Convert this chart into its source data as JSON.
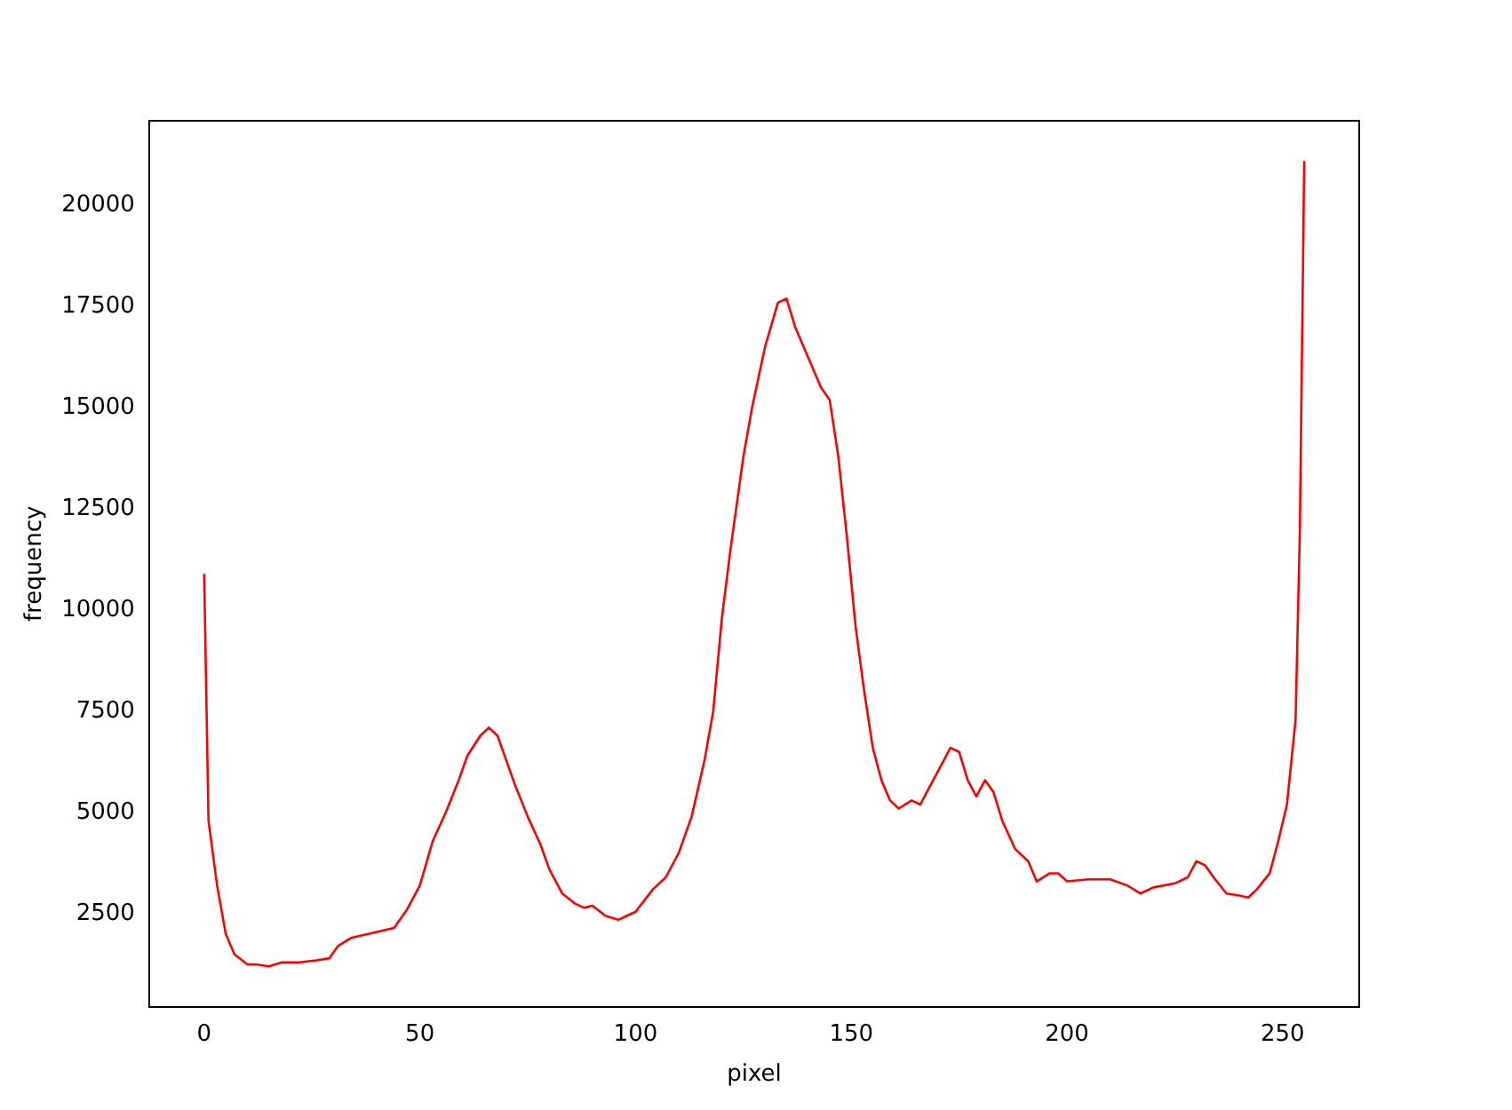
{
  "chart_data": {
    "type": "line",
    "xlabel": "pixel",
    "ylabel": "frequency",
    "x": [
      0,
      1,
      3,
      5,
      7,
      10,
      12,
      15,
      18,
      22,
      26,
      29,
      31,
      34,
      38,
      40,
      44,
      47,
      50,
      53,
      56,
      59,
      61,
      64,
      66,
      68,
      70,
      72,
      75,
      78,
      80,
      83,
      86,
      88,
      90,
      93,
      96,
      98,
      100,
      104,
      107,
      110,
      113,
      116,
      118,
      120,
      122,
      125,
      127,
      130,
      133,
      135,
      137,
      139,
      141,
      143,
      145,
      147,
      149,
      151,
      153,
      155,
      157,
      159,
      161,
      164,
      166,
      168,
      171,
      173,
      175,
      177,
      179,
      181,
      183,
      185,
      188,
      191,
      193,
      196,
      198,
      200,
      205,
      210,
      214,
      217,
      220,
      225,
      228,
      230,
      232,
      234,
      237,
      240,
      242,
      244,
      247,
      249,
      251,
      253,
      254,
      255
    ],
    "series": [
      {
        "color": "#ff0000",
        "values": [
          10900,
          4800,
          3200,
          2000,
          1500,
          1250,
          1250,
          1200,
          1300,
          1300,
          1350,
          1400,
          1700,
          1900,
          2000,
          2050,
          2150,
          2600,
          3200,
          4300,
          5000,
          5800,
          6400,
          6900,
          7100,
          6900,
          6300,
          5700,
          4900,
          4200,
          3600,
          3000,
          2750,
          2650,
          2700,
          2450,
          2350,
          2450,
          2550,
          3100,
          3400,
          4000,
          4900,
          6300,
          7500,
          9800,
          11500,
          13800,
          15000,
          16500,
          17600,
          17700,
          17000,
          16500,
          16000,
          15500,
          15200,
          13800,
          11800,
          9600,
          8000,
          6600,
          5800,
          5300,
          5100,
          5300,
          5200,
          5600,
          6200,
          6600,
          6500,
          5800,
          5400,
          5800,
          5500,
          4800,
          4100,
          3800,
          3300,
          3500,
          3500,
          3300,
          3350,
          3350,
          3200,
          3000,
          3150,
          3250,
          3400,
          3800,
          3700,
          3400,
          3000,
          2950,
          2900,
          3100,
          3500,
          4300,
          5200,
          7300,
          12000,
          21100
        ]
      }
    ],
    "xlim": [
      -12.75,
      267.75
    ],
    "xticks": [
      0,
      50,
      100,
      150,
      200,
      250
    ],
    "ylim": [
      205,
      22095
    ],
    "yticks": [
      2500,
      5000,
      7500,
      10000,
      12500,
      15000,
      17500,
      20000
    ],
    "grid": false,
    "legend": false,
    "marker": "none",
    "line_style": "solid"
  }
}
